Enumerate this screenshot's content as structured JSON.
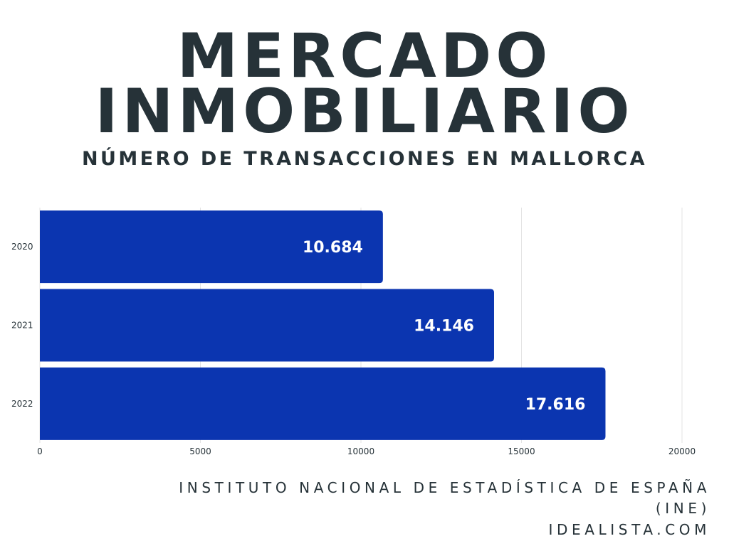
{
  "header": {
    "title_line1": "MERCADO",
    "title_line2": "INMOBILIARIO",
    "subtitle": "NÚMERO DE TRANSACCIONES EN MALLORCA"
  },
  "footer": {
    "source_line1": "INSTITUTO NACIONAL DE ESTADÍSTICA DE ESPAÑA",
    "source_line2": "(INE)",
    "source_line3": "IDEALISTA.COM"
  },
  "colors": {
    "bar": "#0b35b0",
    "text": "#263238",
    "grid": "#e3e3e3",
    "data_label": "#ffffff"
  },
  "chart_data": {
    "type": "bar",
    "orientation": "horizontal",
    "categories": [
      "2020",
      "2021",
      "2022"
    ],
    "values": [
      10684,
      14146,
      17616
    ],
    "value_labels": [
      "10.684",
      "14.146",
      "17.616"
    ],
    "xlim": [
      0,
      20000
    ],
    "xticks": [
      0,
      5000,
      10000,
      15000,
      20000
    ],
    "xtick_labels": [
      "0",
      "5000",
      "10000",
      "15000",
      "20000"
    ],
    "grid": true,
    "legend": "none"
  }
}
